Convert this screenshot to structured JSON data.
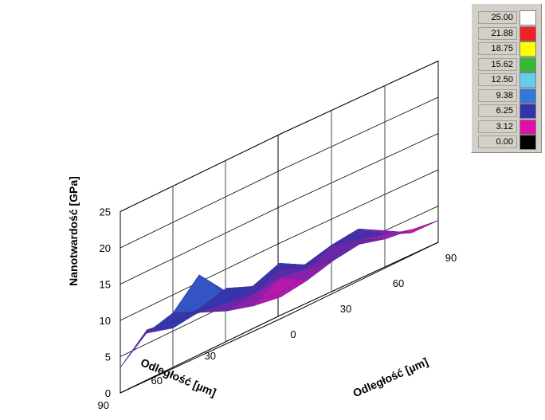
{
  "chart_data": {
    "type": "surface3d",
    "title": "",
    "ylabel": "Nanotwardość [GPa]",
    "x_axis": {
      "label": "Odległość [µm]",
      "ticks": [
        "30",
        "60",
        "90"
      ]
    },
    "z_axis": {
      "label": "Odległość [µm]",
      "ticks": [
        "0",
        "30",
        "60",
        "90"
      ]
    },
    "y_axis": {
      "ticks": [
        "0",
        "5",
        "10",
        "15",
        "20",
        "25"
      ],
      "range": [
        0,
        25
      ]
    },
    "grid_x": [
      0,
      15,
      30,
      45,
      60,
      75,
      90
    ],
    "grid_z": [
      0,
      15,
      30,
      45,
      60,
      75,
      90
    ],
    "surface_values": [
      [
        3.0,
        3.5,
        4.5,
        5.0,
        4.0,
        3.5,
        3.0
      ],
      [
        3.5,
        5.5,
        5.0,
        6.5,
        5.5,
        4.5,
        3.0
      ],
      [
        4.5,
        5.0,
        7.0,
        5.5,
        6.5,
        7.0,
        5.0
      ],
      [
        6.0,
        5.5,
        6.0,
        7.5,
        5.5,
        6.5,
        6.0
      ],
      [
        6.5,
        6.5,
        7.5,
        6.0,
        6.5,
        5.5,
        4.5
      ],
      [
        7.0,
        5.5,
        6.0,
        6.5,
        5.0,
        5.0,
        4.0
      ],
      [
        3.5,
        6.5,
        7.5,
        11.0,
        7.0,
        4.0,
        3.0
      ]
    ],
    "legend": [
      {
        "label": "25.00",
        "color": "#ffffff"
      },
      {
        "label": "21.88",
        "color": "#ee2222"
      },
      {
        "label": "18.75",
        "color": "#ffff00"
      },
      {
        "label": "15.62",
        "color": "#33bb33"
      },
      {
        "label": "12.50",
        "color": "#66ccee"
      },
      {
        "label": "9.38",
        "color": "#3377dd"
      },
      {
        "label": "6.25",
        "color": "#3333aa"
      },
      {
        "label": "3.12",
        "color": "#dd11aa"
      },
      {
        "label": "0.00",
        "color": "#000000"
      }
    ],
    "grid": true,
    "legend_position": "top-right"
  }
}
